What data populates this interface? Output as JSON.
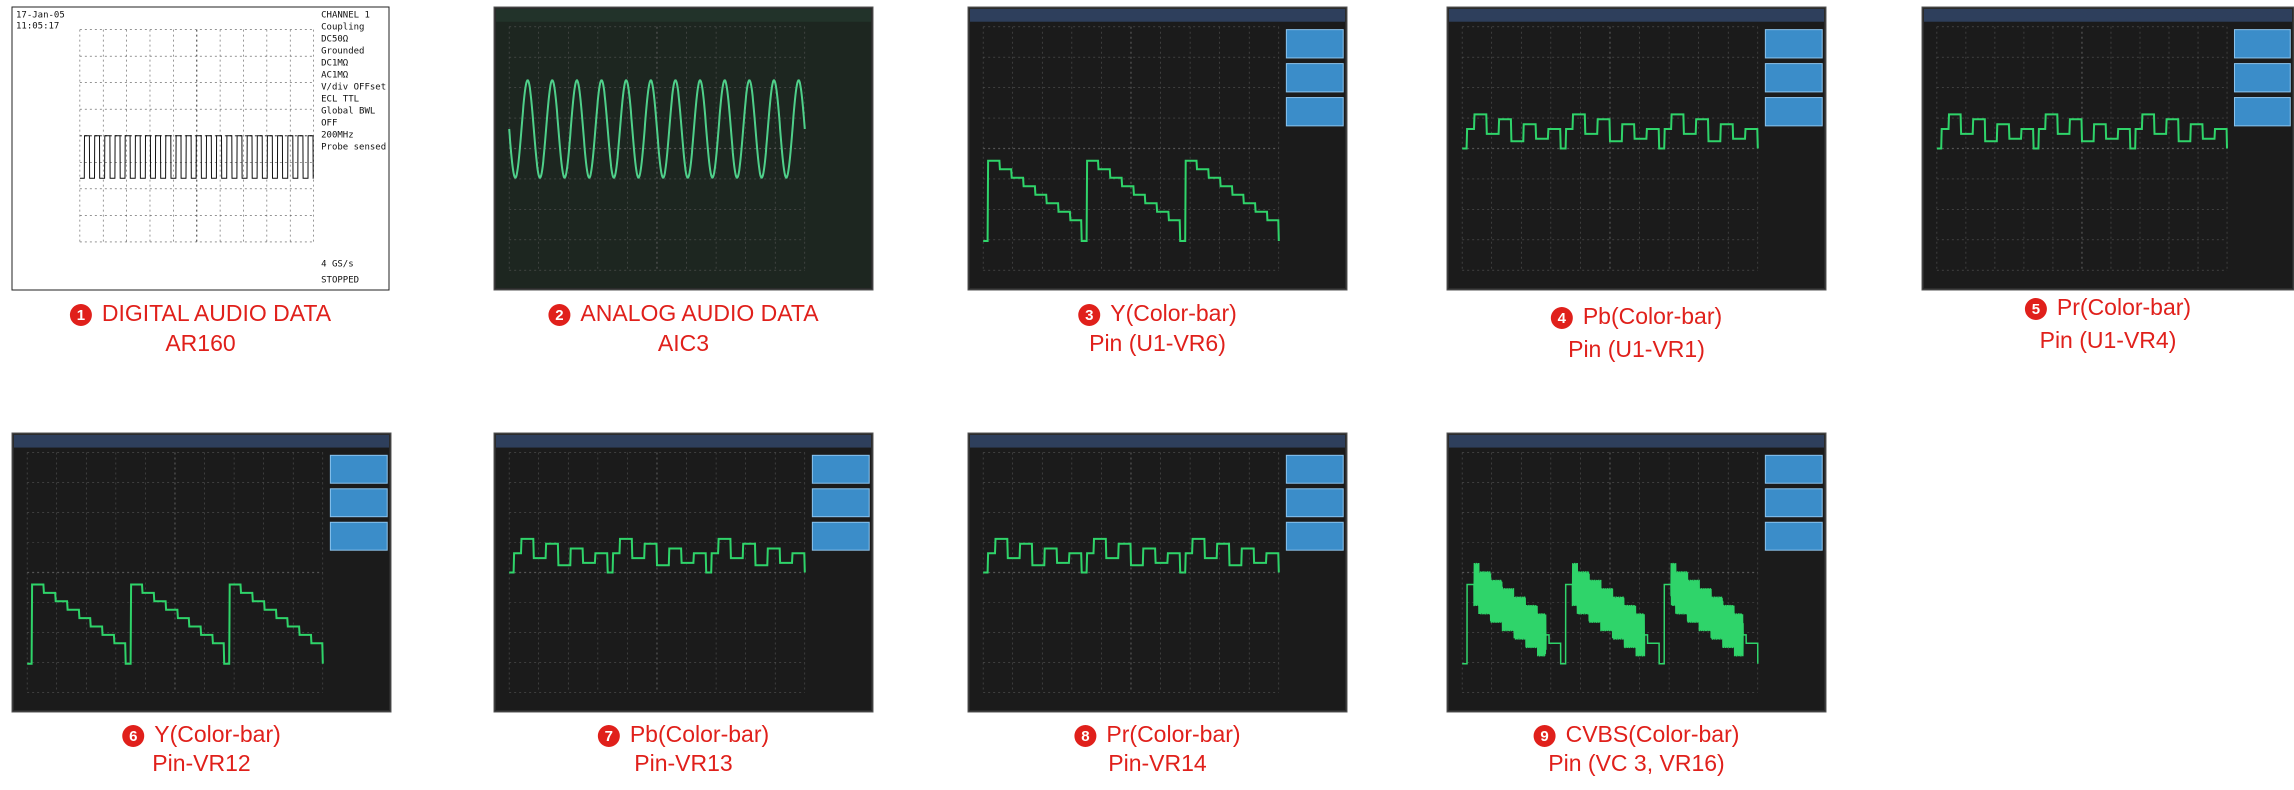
{
  "panels": [
    {
      "number": "1",
      "title": "DIGITAL AUDIO DATA",
      "subtitle": "AR160"
    },
    {
      "number": "2",
      "title": "ANALOG AUDIO DATA",
      "subtitle": "AIC3"
    },
    {
      "number": "3",
      "title": "Y(Color-bar)",
      "subtitle": "Pin (U1-VR6)"
    },
    {
      "number": "4",
      "title": "Pb(Color-bar)",
      "subtitle": "Pin (U1-VR1)"
    },
    {
      "number": "5",
      "title": "Pr(Color-bar)",
      "subtitle": "Pin (U1-VR4)"
    },
    {
      "number": "6",
      "title": "Y(Color-bar)",
      "subtitle": "Pin-VR12"
    },
    {
      "number": "7",
      "title": "Pb(Color-bar)",
      "subtitle": "Pin-VR13"
    },
    {
      "number": "8",
      "title": "Pr(Color-bar)",
      "subtitle": "Pin-VR14"
    },
    {
      "number": "9",
      "title": "CVBS(Color-bar)",
      "subtitle": "Pin (VC 3, VR16)"
    }
  ],
  "screen_text": [
    "17-Jan-05",
    "11:05:17",
    "CHANNEL 1",
    "Coupling",
    "DC50Ω",
    "Grounded",
    "DC1MΩ",
    "AC1MΩ",
    "V/div OFFset",
    "ECL TTL",
    "Global BWL",
    "OFF",
    "200MHz",
    "Probe sensed",
    "STOPPED",
    "4 GS/s"
  ]
}
